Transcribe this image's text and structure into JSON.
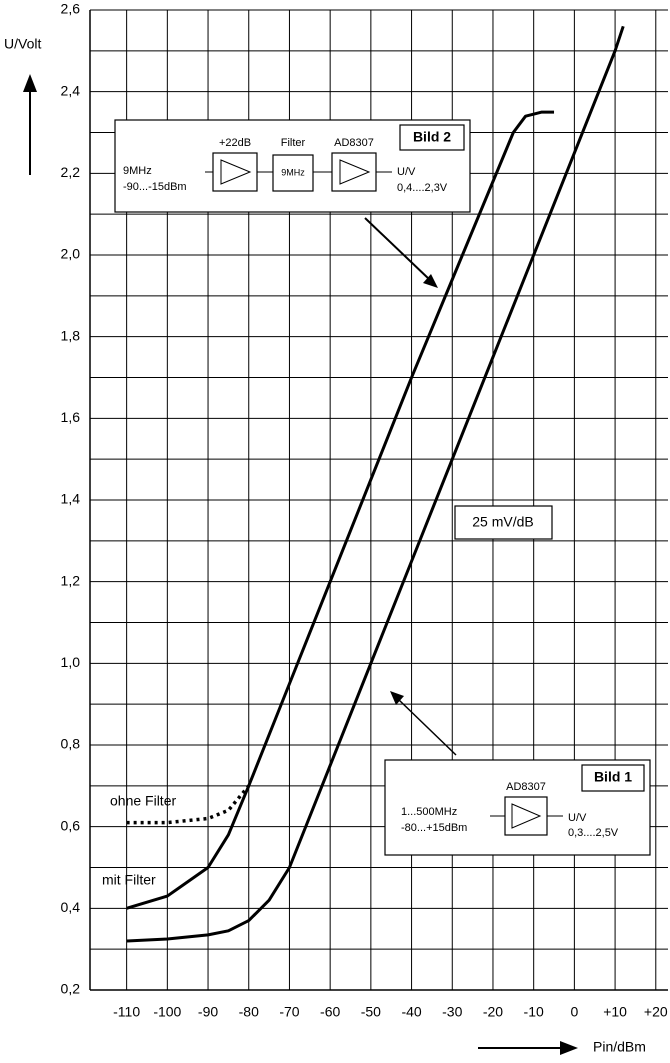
{
  "chart_data": {
    "type": "line",
    "y_label": "U/Volt",
    "x_label": "Pin/dBm",
    "xlim": [
      -119,
      23
    ],
    "ylim": [
      0.2,
      2.6
    ],
    "xticks": [
      -110,
      -100,
      -90,
      -80,
      -70,
      -60,
      -50,
      -40,
      -30,
      -20,
      -10,
      0,
      {
        "value": 10,
        "label": "+10"
      },
      {
        "value": 20,
        "label": "+20"
      }
    ],
    "yticks": [
      {
        "value": 0.2,
        "label": "0,2"
      },
      {
        "value": 0.4,
        "label": "0,4"
      },
      {
        "value": 0.6,
        "label": "0,6"
      },
      {
        "value": 0.8,
        "label": "0,8"
      },
      {
        "value": 1.0,
        "label": "1,0"
      },
      {
        "value": 1.2,
        "label": "1,2"
      },
      {
        "value": 1.4,
        "label": "1,4"
      },
      {
        "value": 1.6,
        "label": "1,6"
      },
      {
        "value": 1.8,
        "label": "1,8"
      },
      {
        "value": 2.0,
        "label": "2,0"
      },
      {
        "value": 2.2,
        "label": "2,2"
      },
      {
        "value": 2.4,
        "label": "2,4"
      },
      {
        "value": 2.6,
        "label": "2,6"
      }
    ],
    "yminorticks": [
      0.3,
      0.5,
      0.7,
      0.9,
      1.1,
      1.3,
      1.5,
      1.7,
      1.9,
      2.1,
      2.3,
      2.5
    ],
    "grid": true,
    "series": [
      {
        "name": "mit Filter",
        "color": "#000000",
        "style": "solid",
        "x": [
          -110,
          -100,
          -90,
          -85,
          -80,
          -70,
          -60,
          -50,
          -40,
          -30,
          -20,
          -15,
          -12,
          -8,
          -5
        ],
        "values": [
          0.4,
          0.43,
          0.5,
          0.58,
          0.7,
          0.95,
          1.2,
          1.45,
          1.7,
          1.94,
          2.18,
          2.3,
          2.34,
          2.35,
          2.35
        ]
      },
      {
        "name": "ohne Filter",
        "color": "#000000",
        "style": "dotted",
        "x": [
          -110,
          -100,
          -90,
          -85,
          -80
        ],
        "values": [
          0.61,
          0.61,
          0.62,
          0.64,
          0.7
        ]
      },
      {
        "color": "#000000",
        "style": "solid",
        "x": [
          -110,
          -100,
          -90,
          -85,
          -80,
          -75,
          -70,
          -60,
          -50,
          -40,
          -30,
          -20,
          -10,
          0,
          10,
          12
        ],
        "values": [
          0.32,
          0.325,
          0.335,
          0.345,
          0.37,
          0.42,
          0.5,
          0.75,
          1.0,
          1.25,
          1.5,
          1.75,
          2.0,
          2.25,
          2.5,
          2.56
        ]
      }
    ],
    "annotation": "25 mV/dB",
    "insets": [
      {
        "title": "Bild 2",
        "input": [
          "9MHz",
          "-90...-15dBm"
        ],
        "gain": "+22dB",
        "filter_label": "Filter",
        "filter_text": "9MHz",
        "chip": "AD8307",
        "output": [
          "U/V",
          "0,4....2,3V"
        ]
      },
      {
        "title": "Bild 1",
        "input": [
          "1...500MHz",
          "-80...+15dBm"
        ],
        "chip": "AD8307",
        "output": [
          "U/V",
          "0,3....2,5V"
        ]
      }
    ]
  }
}
